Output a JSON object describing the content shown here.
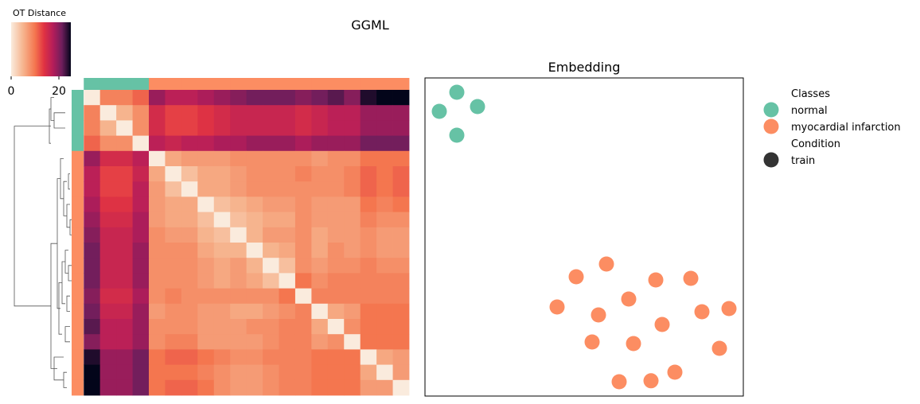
{
  "figure": {
    "title": "GGML",
    "colorbar": {
      "label": "OT Distance",
      "ticks": [
        0,
        20
      ],
      "vmin": 0,
      "vmax": 25
    },
    "legend": {
      "groups": [
        {
          "title": "Classes",
          "items": [
            {
              "label": "normal",
              "color": "#66c2a5"
            },
            {
              "label": "myocardial infarction",
              "color": "#fc8d62"
            }
          ]
        },
        {
          "title": "Condition",
          "items": [
            {
              "label": "train",
              "color": "#333333"
            }
          ]
        }
      ]
    }
  },
  "chart_data": [
    {
      "type": "heatmap",
      "title": "",
      "xlabel": "",
      "ylabel": "",
      "colormap": "rocket",
      "vmin": 0,
      "vmax": 25,
      "row_class_colors": [
        "#66c2a5",
        "#66c2a5",
        "#66c2a5",
        "#66c2a5",
        "#fc8d62",
        "#fc8d62",
        "#fc8d62",
        "#fc8d62",
        "#fc8d62",
        "#fc8d62",
        "#fc8d62",
        "#fc8d62",
        "#fc8d62",
        "#fc8d62",
        "#fc8d62",
        "#fc8d62",
        "#fc8d62",
        "#fc8d62",
        "#fc8d62",
        "#fc8d62"
      ],
      "col_class_colors": [
        "#66c2a5",
        "#66c2a5",
        "#66c2a5",
        "#66c2a5",
        "#fc8d62",
        "#fc8d62",
        "#fc8d62",
        "#fc8d62",
        "#fc8d62",
        "#fc8d62",
        "#fc8d62",
        "#fc8d62",
        "#fc8d62",
        "#fc8d62",
        "#fc8d62",
        "#fc8d62",
        "#fc8d62",
        "#fc8d62",
        "#fc8d62",
        "#fc8d62"
      ],
      "matrix": [
        [
          0,
          9,
          9,
          11,
          19,
          17,
          17,
          18,
          19,
          20,
          21,
          21,
          21,
          20,
          21,
          22,
          20,
          24,
          25,
          25
        ],
        [
          9,
          0,
          5,
          8,
          15,
          13,
          13,
          14,
          15,
          16,
          16,
          16,
          16,
          15,
          16,
          17,
          17,
          19,
          19,
          19
        ],
        [
          9,
          5,
          0,
          8,
          15,
          13,
          13,
          14,
          15,
          16,
          16,
          16,
          16,
          15,
          16,
          17,
          17,
          19,
          19,
          19
        ],
        [
          11,
          8,
          8,
          0,
          17,
          16,
          17,
          17,
          18,
          18,
          19,
          19,
          19,
          18,
          19,
          19,
          19,
          21,
          21,
          21
        ],
        [
          19,
          15,
          15,
          17,
          0,
          6,
          7,
          7,
          7,
          8,
          8,
          8,
          8,
          8,
          7,
          8,
          8,
          10,
          10,
          10
        ],
        [
          17,
          13,
          13,
          16,
          6,
          0,
          4,
          6,
          6,
          7,
          8,
          8,
          8,
          9,
          8,
          8,
          9,
          11,
          10,
          11
        ],
        [
          17,
          13,
          13,
          17,
          7,
          4,
          0,
          6,
          6,
          7,
          8,
          8,
          8,
          8,
          8,
          8,
          9,
          11,
          10,
          11
        ],
        [
          18,
          14,
          14,
          17,
          7,
          6,
          6,
          0,
          4,
          5,
          6,
          7,
          7,
          8,
          7,
          7,
          7,
          10,
          9,
          10
        ],
        [
          19,
          15,
          15,
          18,
          7,
          6,
          6,
          4,
          0,
          4,
          5,
          6,
          6,
          8,
          7,
          7,
          7,
          9,
          8,
          8
        ],
        [
          20,
          16,
          16,
          18,
          8,
          7,
          7,
          5,
          4,
          0,
          5,
          7,
          7,
          8,
          6,
          7,
          7,
          8,
          7,
          7
        ],
        [
          21,
          16,
          16,
          19,
          8,
          8,
          8,
          6,
          5,
          5,
          0,
          5,
          6,
          8,
          6,
          8,
          7,
          8,
          7,
          7
        ],
        [
          21,
          16,
          16,
          19,
          8,
          8,
          8,
          7,
          6,
          7,
          5,
          0,
          4,
          8,
          7,
          8,
          8,
          9,
          8,
          8
        ],
        [
          21,
          16,
          16,
          19,
          8,
          8,
          8,
          7,
          6,
          7,
          6,
          4,
          0,
          10,
          8,
          9,
          9,
          9,
          9,
          9
        ],
        [
          20,
          15,
          15,
          18,
          8,
          9,
          8,
          8,
          8,
          8,
          8,
          8,
          10,
          0,
          9,
          9,
          9,
          9,
          9,
          9
        ],
        [
          21,
          16,
          16,
          19,
          7,
          8,
          8,
          7,
          7,
          6,
          6,
          7,
          8,
          9,
          0,
          6,
          7,
          10,
          10,
          10
        ],
        [
          22,
          17,
          17,
          19,
          8,
          8,
          8,
          7,
          7,
          7,
          8,
          8,
          9,
          9,
          6,
          0,
          8,
          10,
          10,
          10
        ],
        [
          20,
          17,
          17,
          19,
          8,
          9,
          9,
          7,
          7,
          7,
          7,
          8,
          9,
          9,
          7,
          8,
          0,
          10,
          10,
          10
        ],
        [
          24,
          19,
          19,
          21,
          10,
          11,
          11,
          10,
          9,
          8,
          8,
          9,
          9,
          9,
          10,
          10,
          10,
          0,
          6,
          7
        ],
        [
          25,
          19,
          19,
          21,
          10,
          10,
          10,
          9,
          8,
          7,
          7,
          8,
          9,
          9,
          10,
          10,
          10,
          6,
          0,
          7
        ],
        [
          25,
          19,
          19,
          21,
          10,
          11,
          11,
          10,
          8,
          7,
          7,
          8,
          9,
          9,
          10,
          10,
          10,
          7,
          7,
          0
        ]
      ],
      "dendrogram": [
        {
          "y": [
            1.5,
            2.5
          ],
          "x": [
            68,
            82
          ]
        },
        {
          "y": [
            0.5,
            2.0
          ],
          "x": [
            64,
            68
          ]
        },
        {
          "y": [
            1.25,
            3.5
          ],
          "x": [
            62,
            64
          ]
        },
        {
          "y": [
            8.5,
            9.5
          ],
          "x": [
            88,
            90
          ]
        },
        {
          "y": [
            7.5,
            9.0
          ],
          "x": [
            84,
            88
          ]
        },
        {
          "y": [
            5.5,
            6.5
          ],
          "x": [
            86,
            88
          ]
        },
        {
          "y": [
            6.0,
            8.25
          ],
          "x": [
            80,
            84
          ]
        },
        {
          "y": [
            4.5,
            7.125
          ],
          "x": [
            76,
            80
          ]
        },
        {
          "y": [
            11.5,
            12.5
          ],
          "x": [
            86,
            90
          ]
        },
        {
          "y": [
            10.5,
            12.0
          ],
          "x": [
            82,
            86
          ]
        },
        {
          "y": [
            13.5,
            14.5
          ],
          "x": [
            84,
            88
          ]
        },
        {
          "y": [
            11.25,
            14.0
          ],
          "x": [
            78,
            82
          ]
        },
        {
          "y": [
            15.5,
            16.5
          ],
          "x": [
            82,
            88
          ]
        },
        {
          "y": [
            12.625,
            16.0
          ],
          "x": [
            74,
            78
          ]
        },
        {
          "y": [
            5.8125,
            14.3125
          ],
          "x": [
            72,
            76
          ]
        },
        {
          "y": [
            18.5,
            19.5
          ],
          "x": [
            80,
            84
          ]
        },
        {
          "y": [
            17.5,
            19.0
          ],
          "x": [
            68,
            80
          ]
        },
        {
          "y": [
            10.0625,
            18.25
          ],
          "x": [
            64,
            72
          ]
        },
        {
          "y": [
            2.375,
            14.15625
          ],
          "x": [
            18,
            64
          ]
        }
      ]
    },
    {
      "type": "scatter",
      "title": "Embedding",
      "xlabel": "",
      "ylabel": "",
      "xlim": [
        0,
        100
      ],
      "ylim": [
        0,
        100
      ],
      "series": [
        {
          "name": "normal",
          "color": "#66c2a5",
          "points": [
            [
              10,
              95.5
            ],
            [
              16.5,
              91
            ],
            [
              4.5,
              89.5
            ],
            [
              10,
              82
            ]
          ]
        },
        {
          "name": "myocardial infarction",
          "color": "#fc8d62",
          "points": [
            [
              57,
              41.5
            ],
            [
              47.5,
              37.5
            ],
            [
              72.5,
              36.5
            ],
            [
              83.5,
              37
            ],
            [
              64,
              30.5
            ],
            [
              41.5,
              28
            ],
            [
              54.5,
              25.5
            ],
            [
              87,
              26.5
            ],
            [
              95.5,
              27.5
            ],
            [
              74.5,
              22.5
            ],
            [
              52.5,
              17
            ],
            [
              65.5,
              16.5
            ],
            [
              92.5,
              15
            ],
            [
              78.5,
              7.5
            ],
            [
              61,
              4.5
            ],
            [
              71,
              4.8
            ]
          ]
        }
      ]
    }
  ]
}
